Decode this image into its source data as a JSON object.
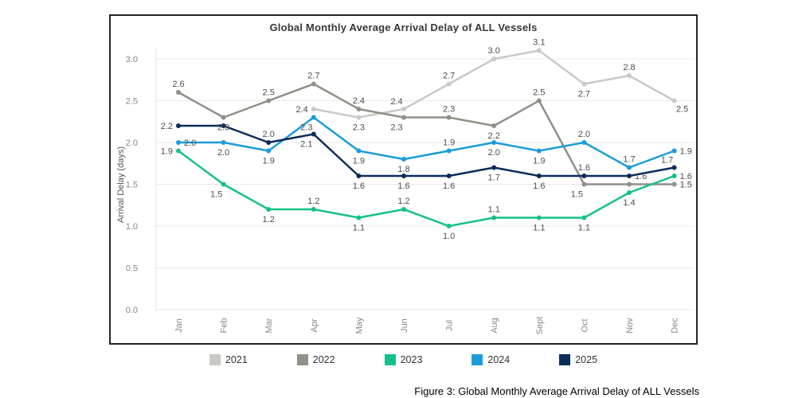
{
  "title": "Global Monthly Average Arrival Delay of ALL Vessels",
  "caption": "Figure 3: Global Monthly Average Arrival Delay of ALL Vessels",
  "colors": {
    "panel_border": "#242424",
    "gridline": "#e9e9e9",
    "axis_line": "#e3e3e3",
    "tick_text": "#878787",
    "data_label_text": "#4d4d4d",
    "axis_title_text": "#555555"
  },
  "chart_data": {
    "type": "line",
    "title": "Global Monthly Average Arrival Delay of ALL Vessels",
    "xlabel": "",
    "ylabel": "Arrival Delay (days)",
    "ylim": [
      0.0,
      3.0
    ],
    "yticks": [
      0.0,
      0.5,
      1.0,
      1.5,
      2.0,
      2.5,
      3.0
    ],
    "grid": "horizontal",
    "legend_position": "bottom",
    "categories": [
      "Jan",
      "Feb",
      "Mar",
      "Apr",
      "May",
      "Jun",
      "Jul",
      "Aug",
      "Sept",
      "Oct",
      "Nov",
      "Dec"
    ],
    "series": [
      {
        "name": "2021",
        "color": "#c9c9c5",
        "values": [
          null,
          null,
          null,
          2.4,
          2.3,
          2.4,
          2.7,
          3.0,
          3.1,
          2.7,
          2.8,
          2.5
        ],
        "labels": [
          "",
          "",
          "",
          "2.4",
          "2.3",
          "2.4",
          "2.7",
          "3.0",
          "3.1",
          "2.7",
          "2.8",
          "2.5"
        ],
        "label_pos": [
          "",
          "",
          "",
          "l",
          "b",
          "al",
          "a",
          "a",
          "a",
          "b",
          "a",
          "br"
        ]
      },
      {
        "name": "2022",
        "color": "#908f88",
        "values": [
          2.6,
          2.3,
          2.5,
          2.7,
          2.4,
          2.3,
          2.3,
          2.2,
          2.5,
          1.5,
          1.5,
          1.5
        ],
        "labels": [
          "2.6",
          "2.3",
          "2.5",
          "2.7",
          "2.4",
          "2.3",
          "2.3",
          "2.2",
          "2.5",
          "1.5",
          "",
          "1.5"
        ],
        "label_pos": [
          "a",
          "b",
          "a",
          "a",
          "a",
          "bl",
          "a",
          "b",
          "a",
          "bl",
          "",
          "r"
        ]
      },
      {
        "name": "2023",
        "color": "#16c08b",
        "values": [
          1.9,
          1.5,
          1.2,
          1.2,
          1.1,
          1.2,
          1.0,
          1.1,
          1.1,
          1.1,
          1.4,
          1.6
        ],
        "labels": [
          "1.9",
          "1.5",
          "1.2",
          "1.2",
          "1.1",
          "1.2",
          "1.0",
          "1.1",
          "1.1",
          "1.1",
          "1.4",
          "1.6"
        ],
        "label_pos": [
          "l",
          "bl",
          "b",
          "a",
          "b",
          "a",
          "b",
          "a",
          "b",
          "b",
          "b",
          "r"
        ]
      },
      {
        "name": "2024",
        "color": "#1b9cd9",
        "values": [
          2.0,
          2.0,
          1.9,
          2.3,
          1.9,
          1.8,
          1.9,
          2.0,
          1.9,
          2.0,
          1.7,
          1.9
        ],
        "labels": [
          "2.0",
          "2.0",
          "1.9",
          "2.3",
          "1.9",
          "1.8",
          "1.9",
          "2.0",
          "1.9",
          "2.0",
          "1.7",
          "1.9"
        ],
        "label_pos": [
          "r",
          "b",
          "b",
          "bl",
          "b",
          "b",
          "a",
          "b",
          "b",
          "a",
          "a",
          "r"
        ]
      },
      {
        "name": "2025",
        "color": "#0c2c59",
        "values": [
          2.2,
          2.2,
          2.0,
          2.1,
          1.6,
          1.6,
          1.6,
          1.7,
          1.6,
          1.6,
          1.6,
          1.7
        ],
        "labels": [
          "2.2",
          "",
          "2.0",
          "2.1",
          "1.6",
          "1.6",
          "1.6",
          "1.7",
          "1.6",
          "1.6",
          "1.6",
          "1.7"
        ],
        "label_pos": [
          "l",
          "",
          "a",
          "bl",
          "b",
          "b",
          "b",
          "b",
          "b",
          "a",
          "r",
          "al"
        ]
      }
    ]
  }
}
